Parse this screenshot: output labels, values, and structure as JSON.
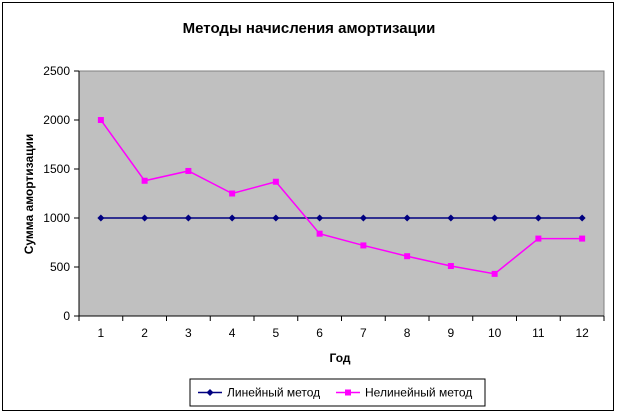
{
  "chart_data": {
    "type": "line",
    "title": "Методы начисления амортизации",
    "xlabel": "Год",
    "ylabel": "Сумма амортизации",
    "categories": [
      "1",
      "2",
      "3",
      "4",
      "5",
      "6",
      "7",
      "8",
      "9",
      "10",
      "11",
      "12"
    ],
    "ylim": [
      0,
      2500
    ],
    "yticks": [
      0,
      500,
      1000,
      1500,
      2000,
      2500
    ],
    "grid": false,
    "plot_background": "#c0c0c0",
    "legend_position": "bottom",
    "series": [
      {
        "name": "Линейный метод",
        "color": "#000080",
        "marker": "diamond",
        "values": [
          1000,
          1000,
          1000,
          1000,
          1000,
          1000,
          1000,
          1000,
          1000,
          1000,
          1000,
          1000
        ]
      },
      {
        "name": "Нелинейный метод",
        "color": "#ff00ff",
        "marker": "square",
        "values": [
          2000,
          1380,
          1480,
          1250,
          1370,
          840,
          720,
          610,
          510,
          430,
          790,
          790
        ]
      }
    ]
  }
}
